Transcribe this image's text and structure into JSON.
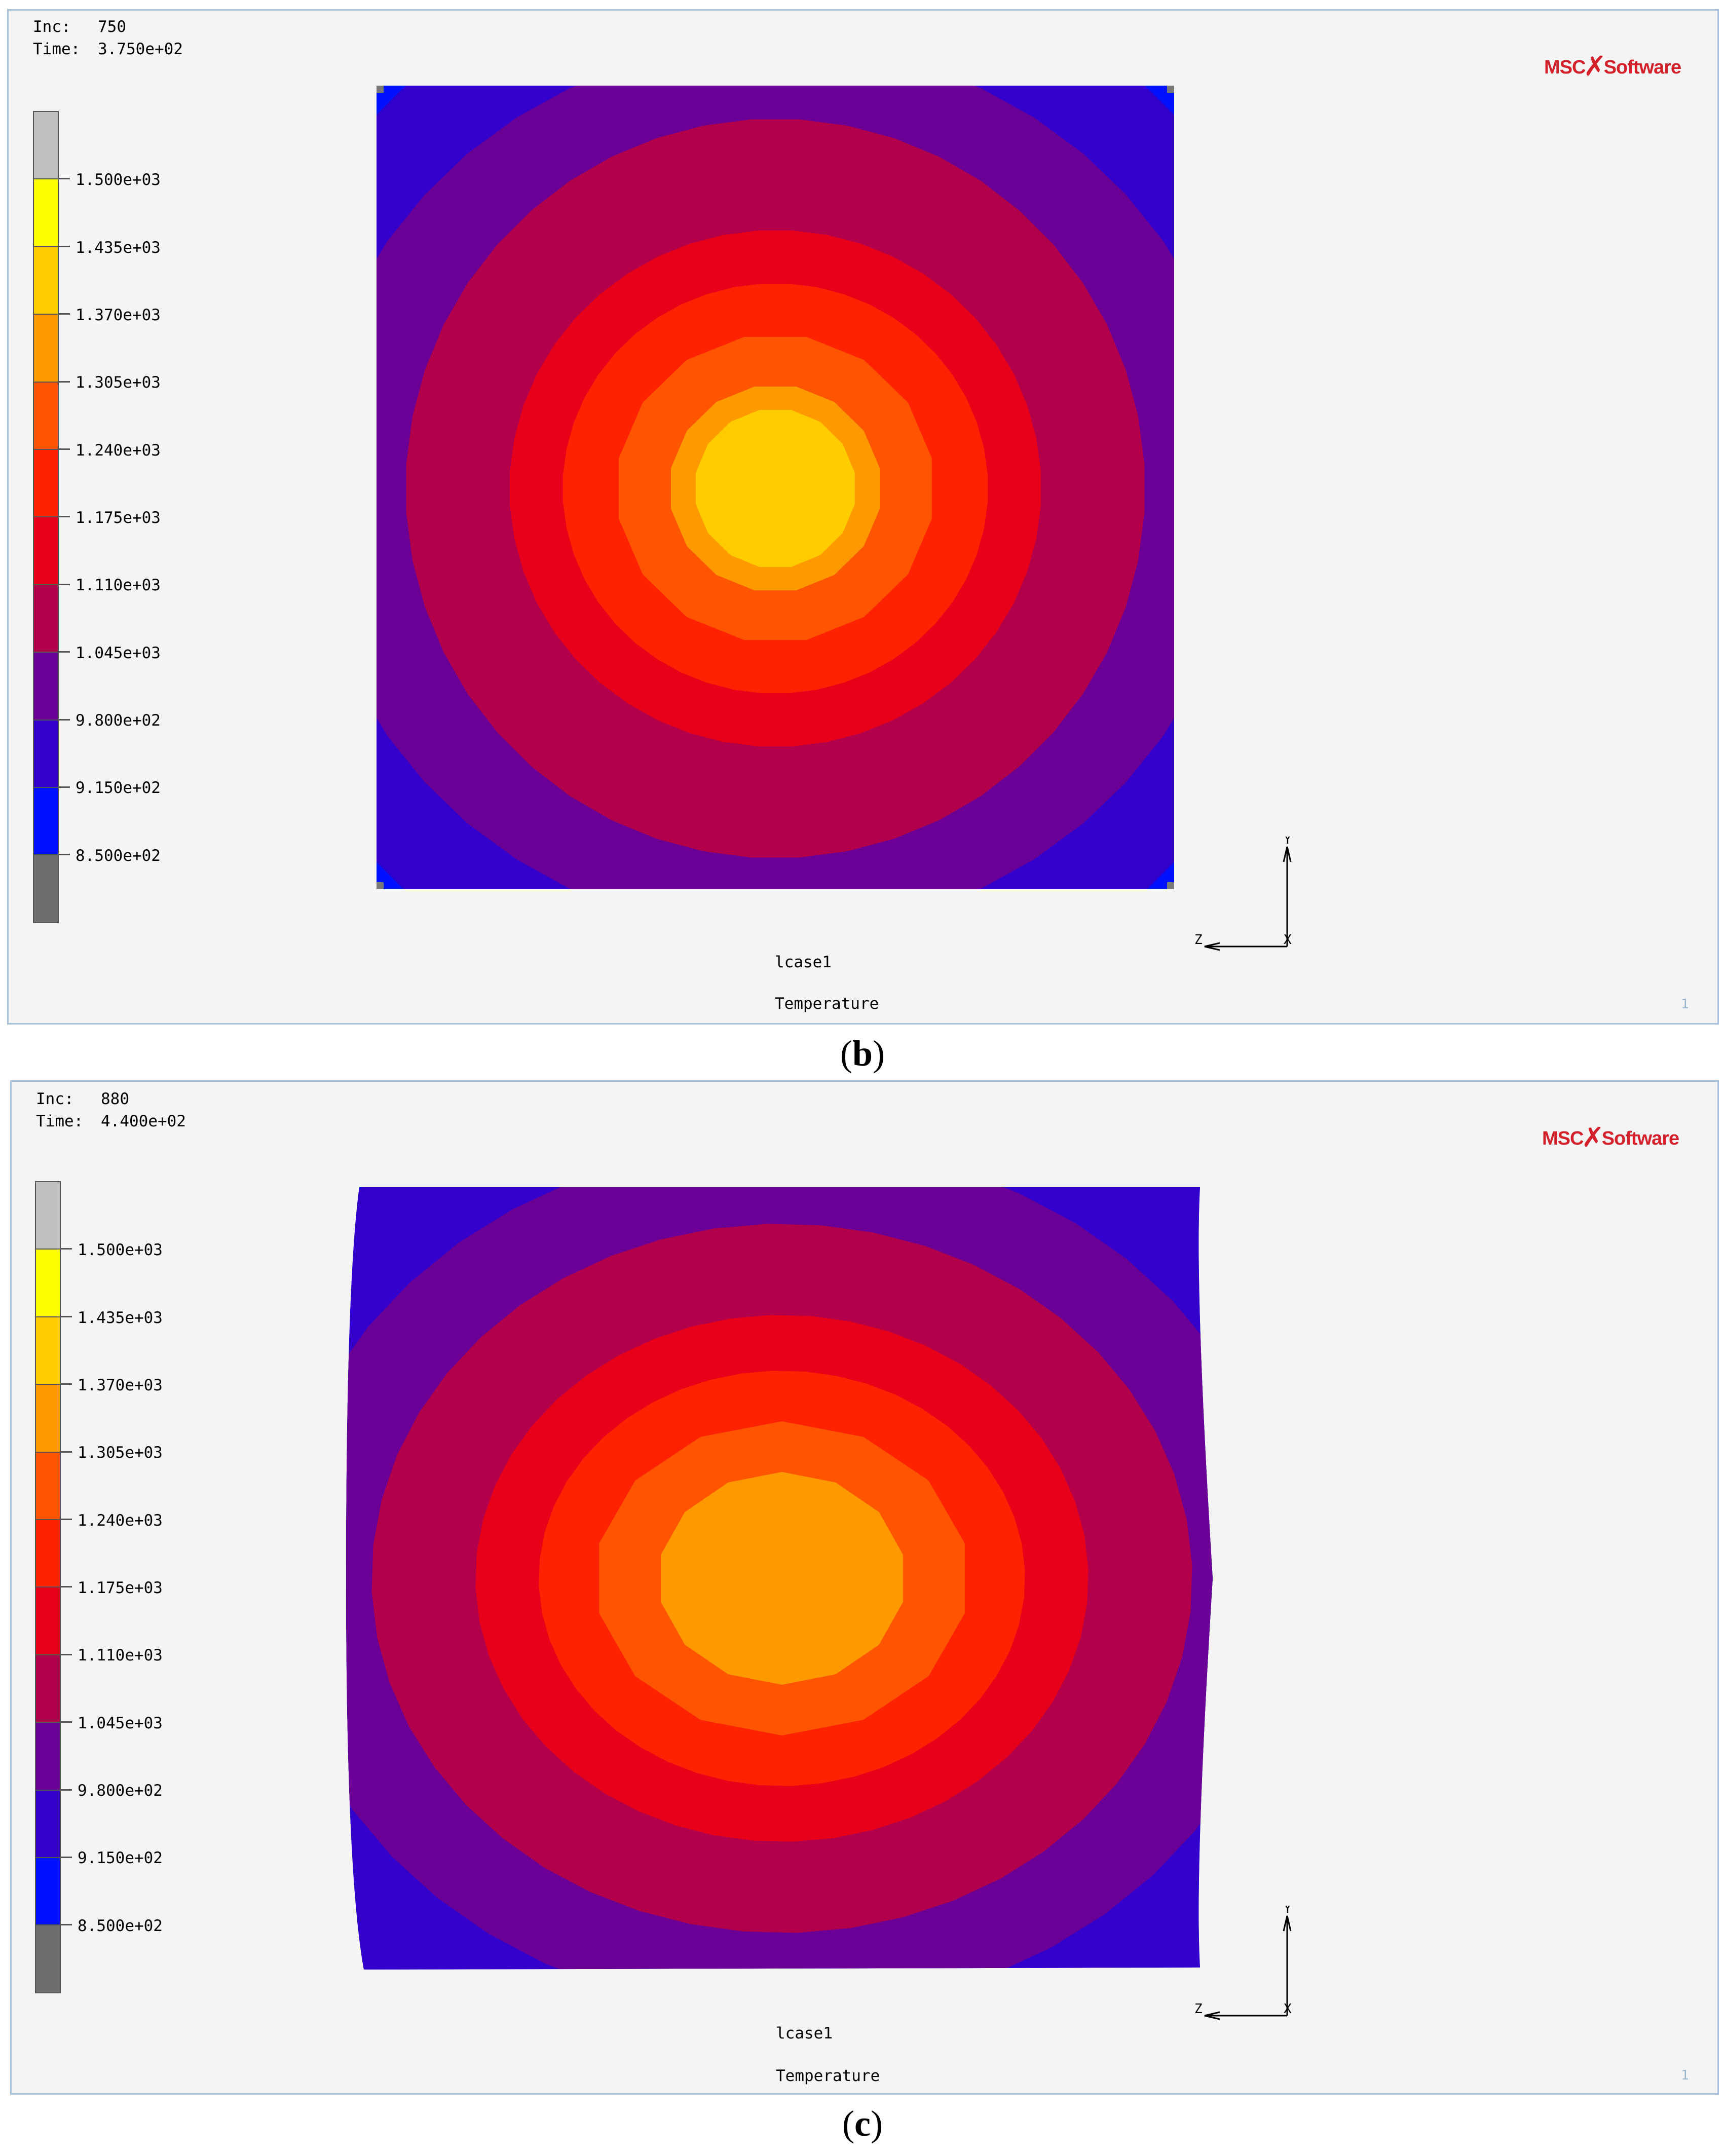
{
  "panels": [
    {
      "inc_label": "Inc:",
      "inc_value": "750",
      "time_label": "Time:",
      "time_value": "3.750e+02",
      "logo": "MSC Software",
      "legend_labels": [
        "1.500e+03",
        "1.435e+03",
        "1.370e+03",
        "1.305e+03",
        "1.240e+03",
        "1.175e+03",
        "1.110e+03",
        "1.045e+03",
        "9.800e+02",
        "9.150e+02",
        "8.500e+02"
      ],
      "loadcase": "lcase1",
      "quantity": "Temperature",
      "page_number": "1",
      "caption_letter": "b",
      "axis_labels": {
        "y": "Y",
        "z": "Z",
        "x": "X"
      }
    },
    {
      "inc_label": "Inc:",
      "inc_value": "880",
      "time_label": "Time:",
      "time_value": "4.400e+02",
      "logo": "MSC Software",
      "legend_labels": [
        "1.500e+03",
        "1.435e+03",
        "1.370e+03",
        "1.305e+03",
        "1.240e+03",
        "1.175e+03",
        "1.110e+03",
        "1.045e+03",
        "9.800e+02",
        "9.150e+02",
        "8.500e+02"
      ],
      "loadcase": "lcase1",
      "quantity": "Temperature",
      "page_number": "1",
      "caption_letter": "c",
      "axis_labels": {
        "y": "Y",
        "z": "Z",
        "x": "X"
      }
    }
  ],
  "colors": {
    "legend_scale": [
      "#c0c0c0",
      "#ffff00",
      "#ffcc00",
      "#ff9900",
      "#ff5500",
      "#ff2200",
      "#e8001a",
      "#b2004a",
      "#6a0096",
      "#3300cc",
      "#0011ff",
      "#6e6e6e"
    ],
    "contour_outer_to_inner_b": [
      "#0011ff",
      "#3300cc",
      "#6a0096",
      "#b2004a",
      "#e8001a",
      "#ff2200",
      "#ff5500",
      "#ff9900",
      "#ffcc00"
    ],
    "contour_outer_to_inner_c": [
      "#0011ff",
      "#3300cc",
      "#6a0096",
      "#b2004a",
      "#e8001a",
      "#ff2200",
      "#ff5500",
      "#ff9900"
    ]
  }
}
